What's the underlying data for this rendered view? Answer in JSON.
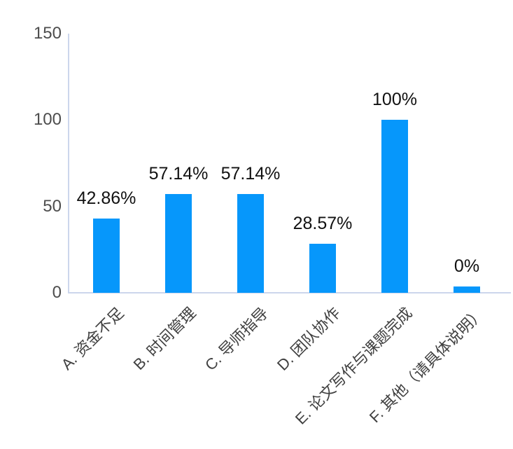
{
  "chart_data": {
    "type": "bar",
    "title": "",
    "xlabel": "",
    "ylabel": "",
    "categories": [
      "A. 资金不足",
      "B. 时间管理",
      "C. 导师指导",
      "D. 团队协作",
      "E. 论文写作与课题完成",
      "F. 其他（请具体说明）"
    ],
    "values": [
      42.86,
      57.14,
      57.14,
      28.57,
      100,
      0
    ],
    "data_labels": [
      "42.86%",
      "57.14%",
      "57.14%",
      "28.57%",
      "100%",
      "0%"
    ],
    "yticks": [
      0,
      50,
      100,
      150
    ],
    "ylim": [
      0,
      150
    ],
    "grid": "off",
    "legend_position": "none",
    "category_label_rotation_deg": -45,
    "colors": {
      "bar_fill": "#0697fb",
      "axis_line": "#ccd6ec",
      "tick_label": "#4d4d4d",
      "data_label": "#111111",
      "category_label": "#404040",
      "background": "#ffffff"
    }
  }
}
